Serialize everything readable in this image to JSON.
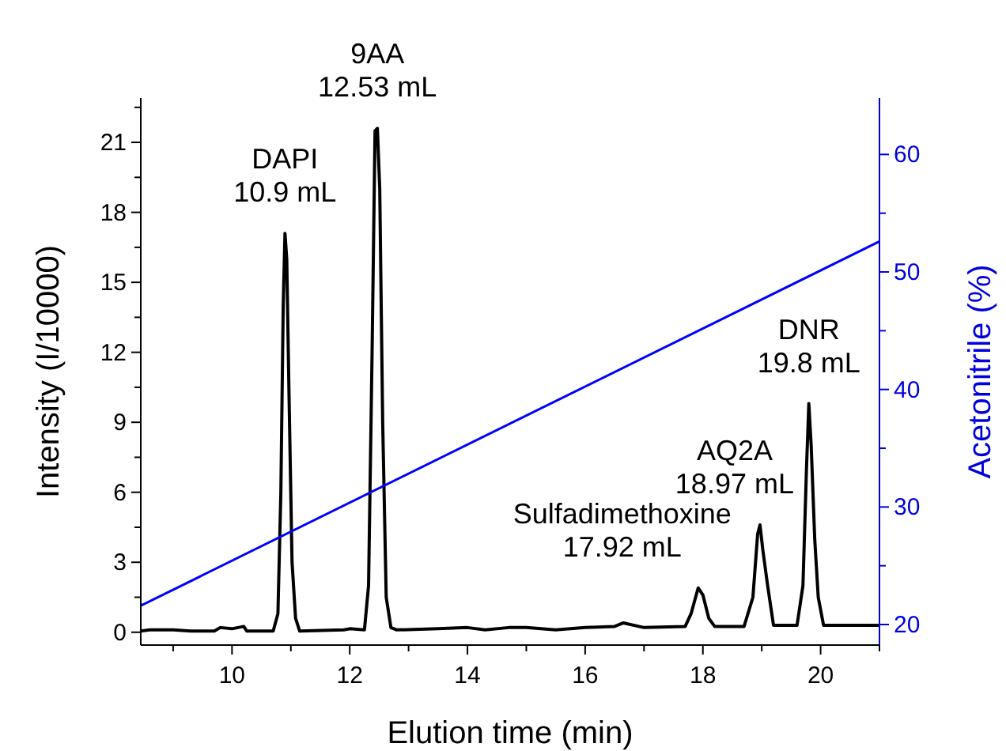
{
  "chart_data": {
    "type": "line",
    "xlabel": "Elution time (min)",
    "ylabel": "Intensity (I/10000)",
    "y2label": "Acetonitrile (%)",
    "xlim": [
      8.45,
      21
    ],
    "xticks": [
      {
        "value": 9,
        "label": null
      },
      10,
      {
        "value": 11,
        "label": null
      },
      12,
      {
        "value": 13,
        "label": null
      },
      14,
      {
        "value": 15,
        "label": null
      },
      16,
      {
        "value": 17,
        "label": null
      },
      18,
      {
        "value": 19,
        "label": null
      },
      20,
      {
        "value": 21,
        "label": null
      }
    ],
    "ylim": [
      -0.55,
      22.9
    ],
    "yticks": [
      0,
      {
        "value": 1.5,
        "label": null
      },
      3,
      {
        "value": 4.5,
        "label": null
      },
      6,
      {
        "value": 7.5,
        "label": null
      },
      9,
      {
        "value": 10.5,
        "label": null
      },
      12,
      {
        "value": 13.5,
        "label": null
      },
      15,
      {
        "value": 16.5,
        "label": null
      },
      18,
      {
        "value": 19.5,
        "label": null
      },
      21,
      {
        "value": 22.5,
        "label": null
      }
    ],
    "y2lim": [
      18.25,
      64.8
    ],
    "y2ticks": [
      20,
      {
        "value": 25,
        "label": null
      },
      30,
      {
        "value": 35,
        "label": null
      },
      40,
      {
        "value": 45,
        "label": null
      },
      50,
      {
        "value": 55,
        "label": null
      },
      60
    ],
    "marker": "none",
    "line_style": "solid",
    "grid": false,
    "series": [
      {
        "color": "#000000",
        "x": [
          8.45,
          8.6,
          9.0,
          9.3,
          9.7,
          9.8,
          10.0,
          10.2,
          10.25,
          10.7,
          10.78,
          10.83,
          10.87,
          10.9,
          10.93,
          10.97,
          11.02,
          11.08,
          11.15,
          11.9,
          12.0,
          12.25,
          12.32,
          12.38,
          12.43,
          12.47,
          12.51,
          12.56,
          12.62,
          12.7,
          12.8,
          13.5,
          14.0,
          14.3,
          14.7,
          15.0,
          15.5,
          16.0,
          16.5,
          16.65,
          17.0,
          17.7,
          17.8,
          17.92,
          18.0,
          18.1,
          18.2,
          18.7,
          18.85,
          18.93,
          18.97,
          19.02,
          19.1,
          19.2,
          19.6,
          19.7,
          19.76,
          19.8,
          19.84,
          19.9,
          19.96,
          20.05,
          21.0
        ],
        "values": [
          0.05,
          0.1,
          0.1,
          0.05,
          0.05,
          0.2,
          0.15,
          0.25,
          0.05,
          0.05,
          0.8,
          6,
          14,
          17.1,
          16,
          10,
          3,
          0.6,
          0.05,
          0.1,
          0.15,
          0.1,
          2,
          12,
          21.5,
          21.6,
          19,
          9,
          1.5,
          0.2,
          0.1,
          0.15,
          0.2,
          0.1,
          0.2,
          0.2,
          0.1,
          0.2,
          0.25,
          0.4,
          0.2,
          0.25,
          0.8,
          1.9,
          1.6,
          0.6,
          0.25,
          0.25,
          1.5,
          4.2,
          4.6,
          3.5,
          2.0,
          0.3,
          0.3,
          2,
          7,
          9.8,
          8,
          4,
          1.5,
          0.3,
          0.3
        ]
      },
      {
        "color": "#0000ff",
        "axis": "y2",
        "x": [
          8.45,
          21
        ],
        "values": [
          21.6,
          52.6
        ]
      }
    ],
    "annotations": [
      {
        "text": "DAPI\n10.9 mL",
        "x": 10.9,
        "y": 17.1
      },
      {
        "text": "9AA\n12.53 mL",
        "x": 12.47,
        "y": 21.6
      },
      {
        "text": "Sulfadimethoxine\n17.92 mL",
        "x": 17.92,
        "y": 1.9
      },
      {
        "text": "AQ2A\n18.97 mL",
        "x": 18.97,
        "y": 4.6
      },
      {
        "text": "DNR\n19.8 mL",
        "x": 19.8,
        "y": 9.8
      }
    ]
  }
}
